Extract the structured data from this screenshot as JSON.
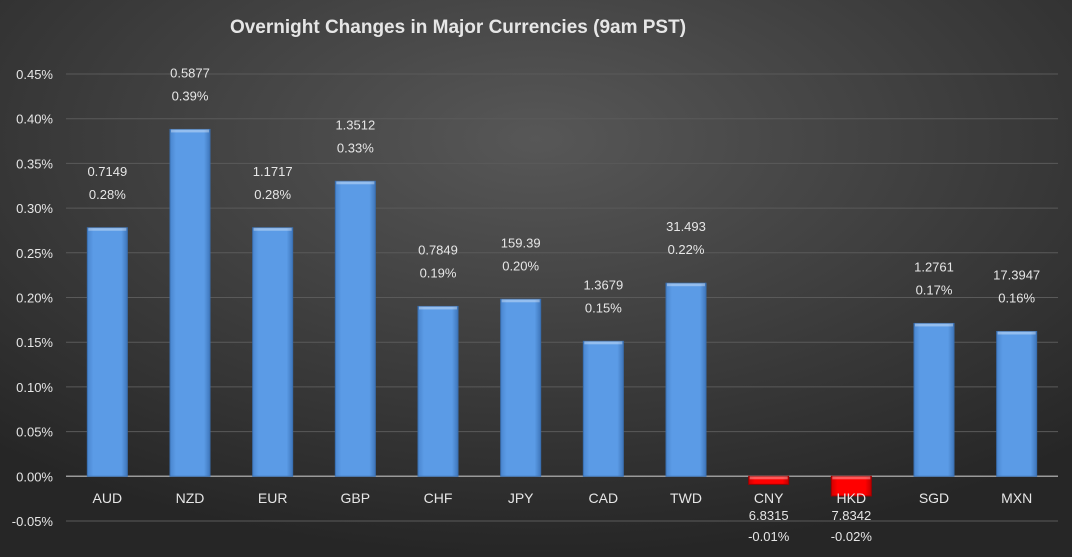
{
  "chart_data": {
    "type": "bar",
    "title": "Overnight Changes in Major Currencies (9am PST)",
    "xlabel": "",
    "ylabel": "",
    "ylim": [
      -0.05,
      0.45
    ],
    "ytick_step": 0.05,
    "yticks": [
      "-0.05%",
      "0.00%",
      "0.05%",
      "0.10%",
      "0.15%",
      "0.20%",
      "0.25%",
      "0.30%",
      "0.35%",
      "0.40%",
      "0.45%"
    ],
    "grid": true,
    "categories": [
      "AUD",
      "NZD",
      "EUR",
      "GBP",
      "CHF",
      "JPY",
      "CAD",
      "TWD",
      "CNY",
      "HKD",
      "SGD",
      "MXN"
    ],
    "values": [
      0.278,
      0.388,
      0.278,
      0.33,
      0.19,
      0.198,
      0.151,
      0.216,
      -0.009,
      -0.022,
      0.171,
      0.162
    ],
    "rate_labels": [
      "0.7149",
      "0.5877",
      "1.1717",
      "1.3512",
      "0.7849",
      "159.39",
      "1.3679",
      "31.493",
      "6.8315",
      "7.8342",
      "1.2761",
      "17.3947"
    ],
    "pct_labels": [
      "0.28%",
      "0.39%",
      "0.28%",
      "0.33%",
      "0.19%",
      "0.20%",
      "0.15%",
      "0.22%",
      "-0.01%",
      "-0.02%",
      "0.17%",
      "0.16%"
    ],
    "colors": {
      "positive": "#5b9be6",
      "negative": "#ff0000",
      "background": "#3a3a3a"
    }
  }
}
